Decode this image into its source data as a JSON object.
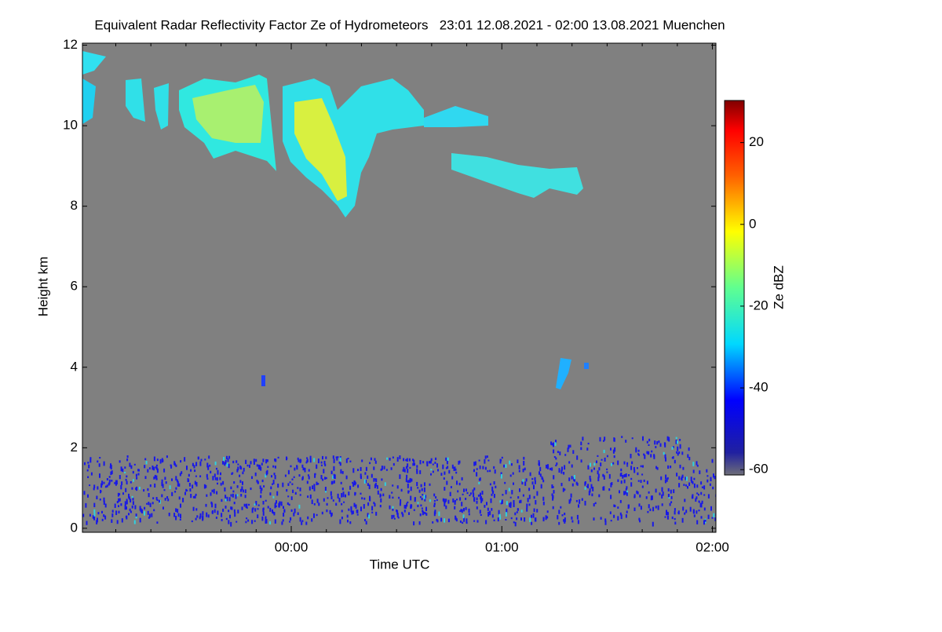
{
  "chart_data": {
    "type": "heatmap",
    "title": "Equivalent Radar Reflectivity Factor Ze of Hydrometeors   23:01 12.08.2021 - 02:00 13.08.2021 Muenchen",
    "x_label": "Time UTC",
    "y_label": "Height km",
    "colorbar_label": "Ze dBZ",
    "xlim": [
      -59.5,
      121
    ],
    "xticks": [
      {
        "value": 0,
        "label": "00:00"
      },
      {
        "value": 60,
        "label": "01:00"
      },
      {
        "value": 120,
        "label": "02:00"
      }
    ],
    "xminorticks": [
      -50,
      -40,
      -30,
      -20,
      -10,
      10,
      20,
      30,
      40,
      50,
      70,
      80,
      90,
      100,
      110
    ],
    "ylim": [
      -0.1,
      12.05
    ],
    "yticks": [
      0,
      2,
      4,
      6,
      8,
      10,
      12
    ],
    "clim": [
      -61.3,
      30.3
    ],
    "cticks": [
      20,
      0,
      -20,
      -40,
      -60
    ],
    "background_color": "#808080"
  }
}
